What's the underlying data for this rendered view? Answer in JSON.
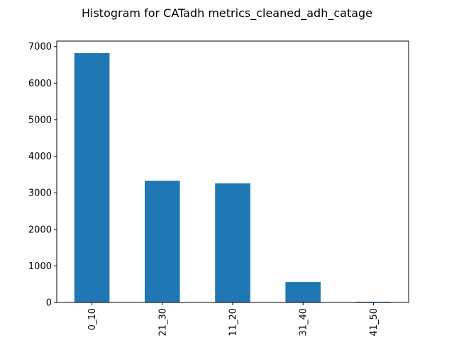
{
  "chart_data": {
    "type": "bar",
    "title": "Histogram for CATadh metrics_cleaned_adh_catage",
    "xlabel": "",
    "ylabel": "",
    "categories": [
      "0_10",
      "21_30",
      "11_20",
      "31_40",
      "41_50"
    ],
    "values": [
      6820,
      3330,
      3260,
      560,
      20
    ],
    "ylim": [
      0,
      7150
    ],
    "yticks": [
      0,
      1000,
      2000,
      3000,
      4000,
      5000,
      6000,
      7000
    ],
    "grid": false,
    "legend": "none",
    "colors": {
      "bar": "#1f77b4",
      "axes": "#000000",
      "background": "#ffffff"
    }
  }
}
